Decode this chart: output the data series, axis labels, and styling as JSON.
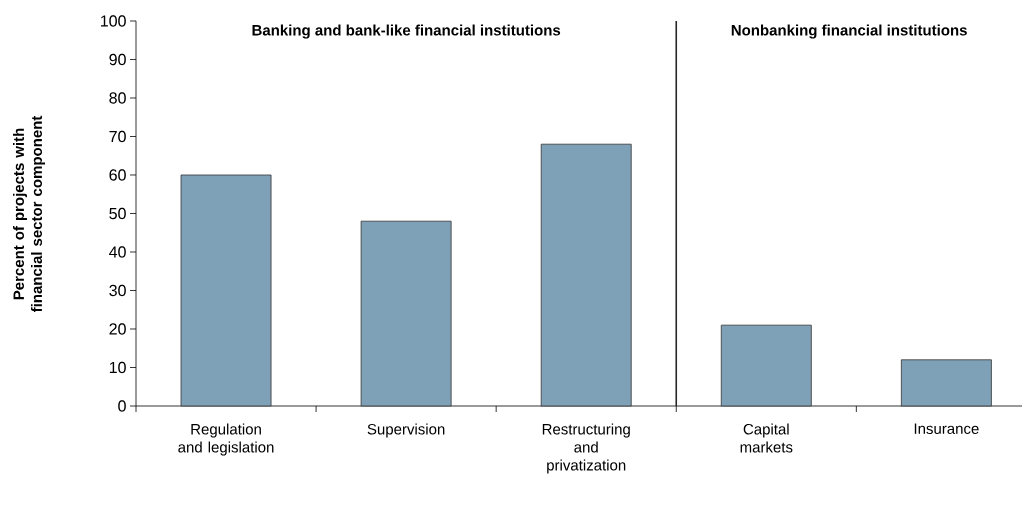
{
  "chart_data": {
    "type": "bar",
    "categories": [
      "Regulation and legislation",
      "Supervision",
      "Restructuring and privatization",
      "Capital markets",
      "Insurance"
    ],
    "values": [
      60,
      48,
      68,
      21,
      12
    ],
    "color": "#7fa1b7",
    "ylabel": "Percent of projects with financial sector component",
    "ylim": [
      0,
      100
    ],
    "yticks": [
      0,
      10,
      20,
      30,
      40,
      50,
      60,
      70,
      80,
      90,
      100
    ],
    "annotations": [
      "Banking and bank-like financial institutions",
      "Nonbanking financial institutions"
    ]
  }
}
